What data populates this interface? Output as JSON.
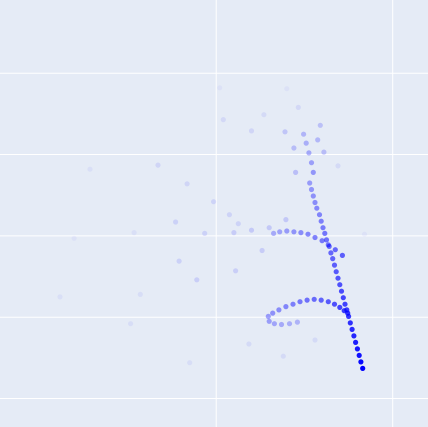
{
  "chart_data": {
    "type": "scatter",
    "title": "",
    "xlabel": "",
    "ylabel": "",
    "grid": true,
    "xlim": [
      -2.45,
      2.4
    ],
    "ylim": [
      -2.35,
      2.9
    ],
    "x_gridlines": [
      0,
      2
    ],
    "y_gridlines": [
      -2,
      -1,
      0,
      1,
      2
    ],
    "colors": {
      "background": "#e5ebf6",
      "grid": "#ffffff",
      "marker": "#0000ff"
    },
    "series": [
      {
        "points": [
          [
            1.66,
            -1.63,
            1.0
          ],
          [
            1.64,
            -1.55,
            0.96
          ],
          [
            1.62,
            -1.47,
            0.93
          ],
          [
            1.6,
            -1.39,
            0.9
          ],
          [
            1.58,
            -1.31,
            0.87
          ],
          [
            1.56,
            -1.23,
            0.84
          ],
          [
            1.54,
            -1.15,
            0.82
          ],
          [
            1.52,
            -1.07,
            0.8
          ],
          [
            1.5,
            -0.99,
            0.77
          ],
          [
            1.48,
            -0.91,
            0.75
          ],
          [
            1.46,
            -0.84,
            0.72
          ],
          [
            1.44,
            -0.76,
            0.7
          ],
          [
            1.42,
            -0.68,
            0.68
          ],
          [
            1.4,
            -0.6,
            0.66
          ],
          [
            1.38,
            -0.52,
            0.64
          ],
          [
            1.36,
            -0.44,
            0.62
          ],
          [
            1.34,
            -0.36,
            0.6
          ],
          [
            1.32,
            -0.28,
            0.58
          ],
          [
            1.3,
            -0.21,
            0.56
          ],
          [
            1.28,
            -0.13,
            0.54
          ],
          [
            1.25,
            -0.05,
            0.52
          ],
          [
            1.23,
            0.03,
            0.5
          ],
          [
            1.21,
            0.1,
            0.48
          ],
          [
            1.19,
            0.18,
            0.46
          ],
          [
            1.17,
            0.26,
            0.44
          ],
          [
            1.14,
            0.34,
            0.42
          ],
          [
            1.12,
            0.41,
            0.4
          ],
          [
            1.1,
            0.49,
            0.38
          ],
          [
            1.08,
            0.57,
            0.36
          ],
          [
            1.06,
            0.65,
            0.34
          ],
          [
            1.49,
            -0.95,
            0.78
          ],
          [
            1.45,
            -0.92,
            0.74
          ],
          [
            1.4,
            -0.88,
            0.7
          ],
          [
            1.34,
            -0.84,
            0.66
          ],
          [
            1.27,
            -0.81,
            0.62
          ],
          [
            1.19,
            -0.79,
            0.58
          ],
          [
            1.11,
            -0.78,
            0.55
          ],
          [
            1.03,
            -0.79,
            0.52
          ],
          [
            0.95,
            -0.81,
            0.49
          ],
          [
            0.87,
            -0.84,
            0.46
          ],
          [
            0.79,
            -0.87,
            0.43
          ],
          [
            0.71,
            -0.91,
            0.4
          ],
          [
            0.64,
            -0.95,
            0.38
          ],
          [
            0.59,
            -0.99,
            0.35
          ],
          [
            0.6,
            -1.05,
            0.33
          ],
          [
            0.66,
            -1.08,
            0.3
          ],
          [
            0.74,
            -1.09,
            0.28
          ],
          [
            0.83,
            -1.08,
            0.26
          ],
          [
            0.92,
            -1.06,
            0.24
          ],
          [
            1.43,
            -0.24,
            0.6
          ],
          [
            1.35,
            -0.17,
            0.56
          ],
          [
            1.27,
            -0.11,
            0.52
          ],
          [
            1.2,
            -0.06,
            0.49
          ],
          [
            1.12,
            -0.02,
            0.46
          ],
          [
            1.04,
            0.02,
            0.43
          ],
          [
            0.96,
            0.04,
            0.4
          ],
          [
            0.88,
            0.05,
            0.37
          ],
          [
            0.8,
            0.06,
            0.34
          ],
          [
            0.72,
            0.05,
            0.31
          ],
          [
            0.65,
            0.03,
            0.28
          ],
          [
            1.1,
            0.78,
            0.36
          ],
          [
            1.08,
            0.9,
            0.32
          ],
          [
            1.05,
            1.02,
            0.29
          ],
          [
            1.02,
            1.14,
            0.26
          ],
          [
            0.99,
            1.25,
            0.23
          ],
          [
            1.15,
            1.18,
            0.22
          ],
          [
            1.22,
            1.03,
            0.2
          ],
          [
            1.18,
            1.36,
            0.18
          ],
          [
            0.88,
            1.08,
            0.2
          ],
          [
            0.9,
            0.78,
            0.19
          ],
          [
            0.78,
            1.28,
            0.16
          ],
          [
            0.79,
            0.2,
            0.15
          ],
          [
            0.6,
            0.1,
            0.15
          ],
          [
            0.4,
            0.07,
            0.14
          ],
          [
            0.2,
            0.04,
            0.13
          ],
          [
            0.52,
            -0.18,
            0.13
          ],
          [
            0.22,
            -0.43,
            0.12
          ],
          [
            -0.22,
            -0.54,
            0.12
          ],
          [
            -0.42,
            -0.31,
            0.11
          ],
          [
            -0.13,
            0.03,
            0.11
          ],
          [
            -0.46,
            0.17,
            0.11
          ],
          [
            0.15,
            0.26,
            0.1
          ],
          [
            0.25,
            0.15,
            0.1
          ],
          [
            -0.03,
            0.42,
            0.1
          ],
          [
            -0.33,
            0.64,
            0.09
          ],
          [
            -0.66,
            0.87,
            0.09
          ],
          [
            0.4,
            1.29,
            0.09
          ],
          [
            0.08,
            1.43,
            0.08
          ],
          [
            0.93,
            1.58,
            0.08
          ],
          [
            0.54,
            1.49,
            0.07
          ],
          [
            1.38,
            0.86,
            0.07
          ],
          [
            0.37,
            -1.33,
            0.07
          ],
          [
            0.76,
            -1.48,
            0.07
          ],
          [
            1.12,
            -1.28,
            0.07
          ],
          [
            -0.3,
            -1.56,
            0.06
          ],
          [
            -0.97,
            -1.08,
            0.06
          ],
          [
            -0.86,
            -0.72,
            0.06
          ],
          [
            -1.77,
            -0.75,
            0.05
          ],
          [
            -0.93,
            0.04,
            0.05
          ],
          [
            -1.43,
            0.82,
            0.05
          ],
          [
            -1.61,
            -0.03,
            0.04
          ],
          [
            1.68,
            0.02,
            0.04
          ],
          [
            0.8,
            1.81,
            0.04
          ],
          [
            0.04,
            1.82,
            0.04
          ]
        ]
      }
    ]
  }
}
